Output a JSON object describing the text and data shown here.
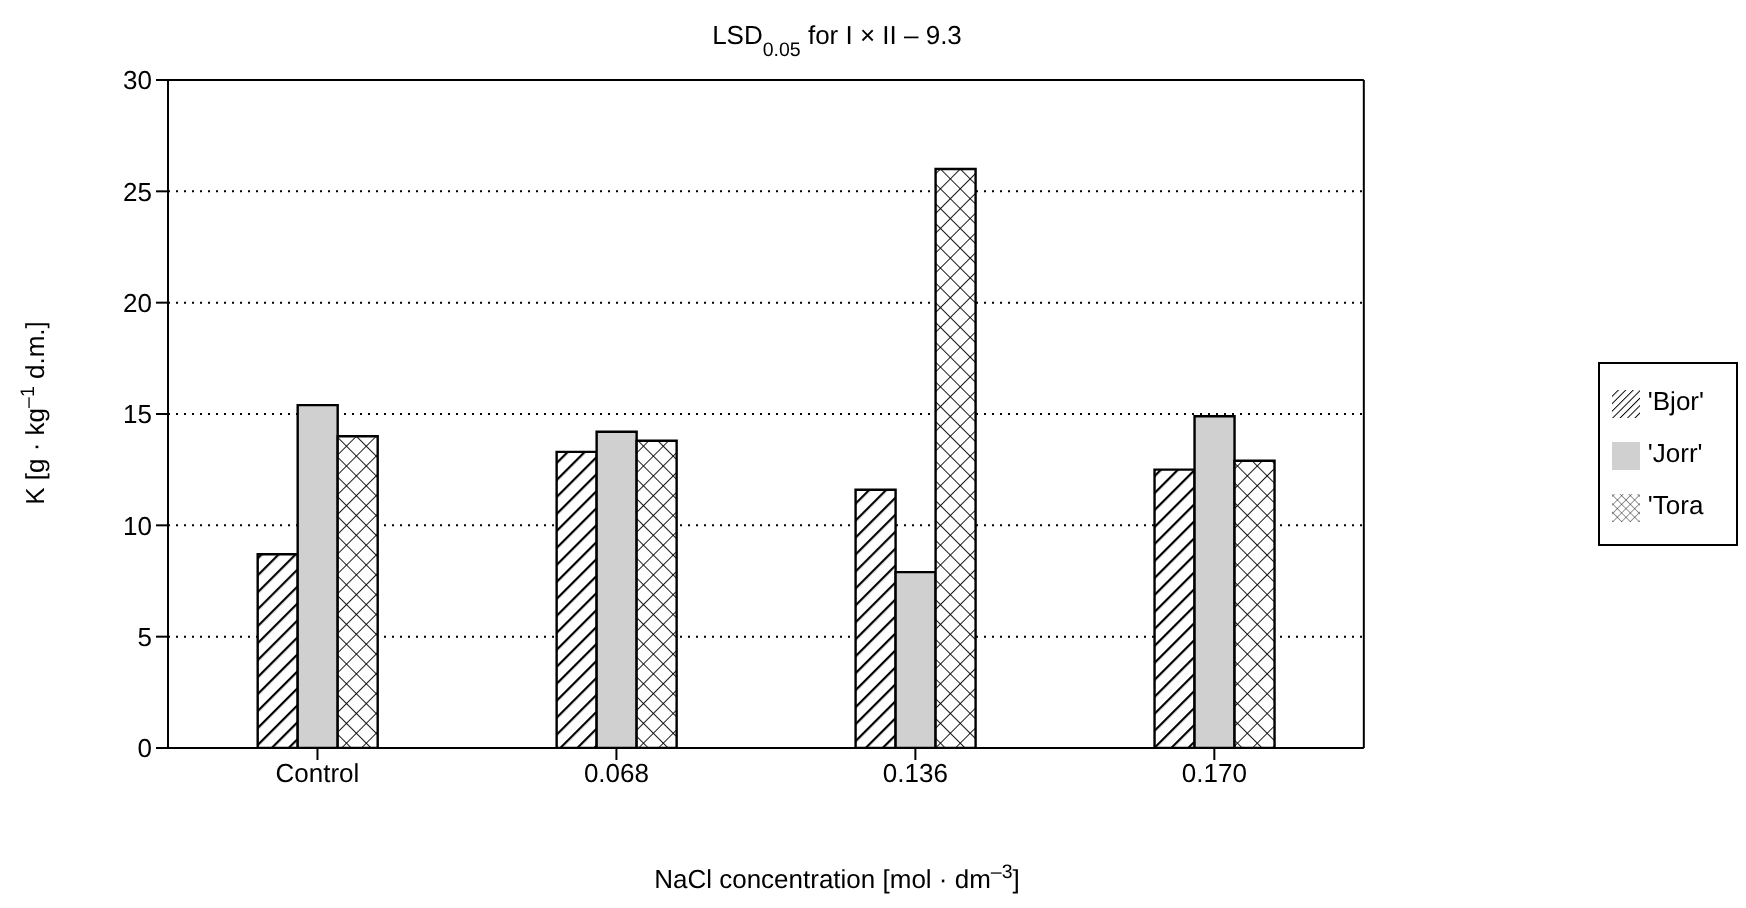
{
  "chart_data": {
    "type": "bar",
    "title": "LSD$_{0.05}$ for I × II – 9.3",
    "xlabel": "NaCl concentration [mol · dm$^{–3}$]",
    "ylabel": "K [g · kg$^{–1}$ d.m.]",
    "categories": [
      "Control",
      "0.068",
      "0.136",
      "0.170"
    ],
    "series": [
      {
        "name": "'Bjor'",
        "color": "#000000",
        "values": [
          8.7,
          13.3,
          11.6,
          12.5
        ]
      },
      {
        "name": "'Jorr'",
        "color": "#d0d0d0",
        "values": [
          15.4,
          14.2,
          7.9,
          14.9
        ]
      },
      {
        "name": "'Tora",
        "color": "#000000",
        "values": [
          14.0,
          13.8,
          26.0,
          12.9
        ]
      }
    ],
    "ylim": [
      0,
      30
    ],
    "yticks": [
      0,
      5,
      10,
      15,
      20,
      25,
      30
    ],
    "grid": "y",
    "legend": "right"
  }
}
